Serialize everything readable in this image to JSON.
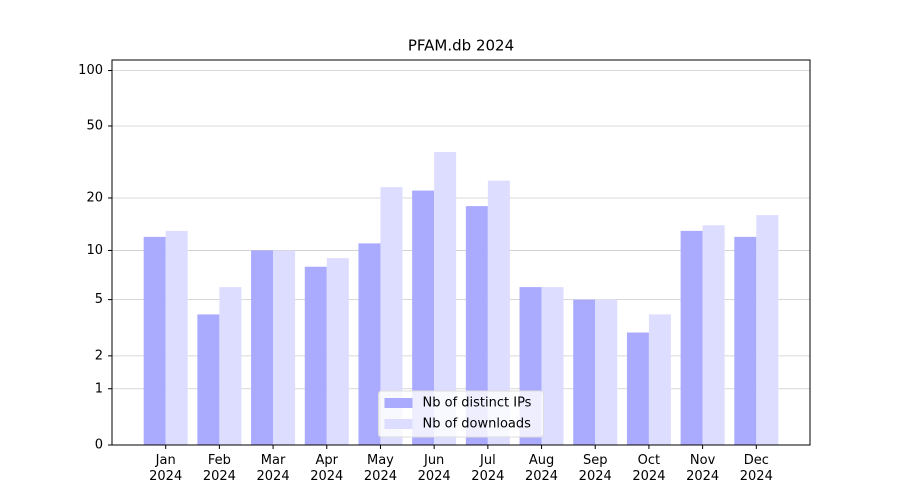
{
  "chart_data": {
    "type": "bar",
    "title": "PFAM.db 2024",
    "categories": [
      "Jan\n2024",
      "Feb\n2024",
      "Mar\n2024",
      "Apr\n2024",
      "May\n2024",
      "Jun\n2024",
      "Jul\n2024",
      "Aug\n2024",
      "Sep\n2024",
      "Oct\n2024",
      "Nov\n2024",
      "Dec\n2024"
    ],
    "series": [
      {
        "name": "Nb of distinct IPs",
        "color": "#aaaaff",
        "values": [
          12,
          4,
          10,
          8,
          11,
          22,
          18,
          6,
          5,
          3,
          13,
          12
        ]
      },
      {
        "name": "Nb of downloads",
        "color": "#ddddff",
        "values": [
          13,
          6,
          10,
          9,
          23,
          36,
          25,
          6,
          5,
          4,
          14,
          16
        ]
      }
    ],
    "yscale": "log1p",
    "ylim": [
      0,
      114
    ],
    "yticks": [
      0,
      1,
      2,
      5,
      10,
      20,
      50,
      100
    ],
    "grid": true,
    "legend": "lower center"
  }
}
